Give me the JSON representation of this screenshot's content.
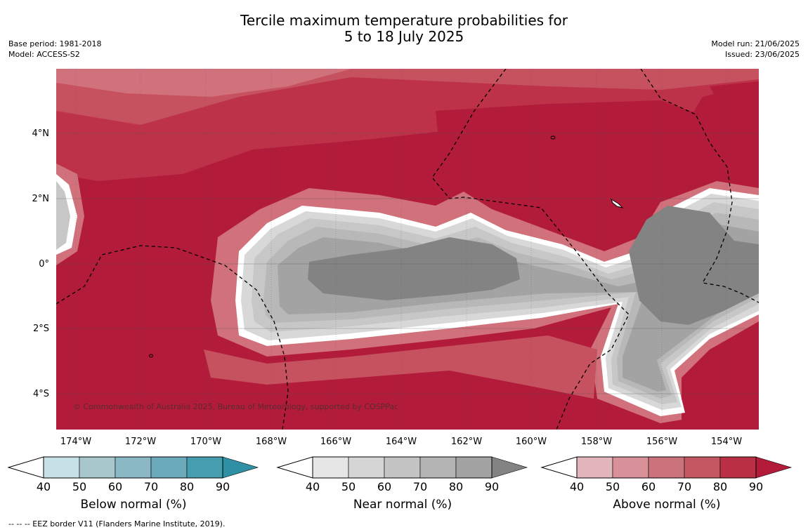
{
  "title": {
    "line1": "Tercile maximum temperature probabilities for",
    "line2": "5 to 18 July 2025"
  },
  "meta_left": {
    "base_period": "Base period: 1981-2018",
    "model": "Model: ACCESS-S2"
  },
  "meta_right": {
    "model_run": "Model run: 21/06/2025",
    "issued": "Issued: 23/06/2025"
  },
  "map": {
    "lat_labels": [
      "4°N",
      "2°N",
      "0°",
      "2°S",
      "4°S"
    ],
    "lon_labels": [
      "174°W",
      "172°W",
      "170°W",
      "168°W",
      "166°W",
      "164°W",
      "162°W",
      "160°W",
      "158°W",
      "156°W",
      "154°W"
    ],
    "copyright": "© Commonwealth of Australia 2025, Bureau of Meteorology, supported by COSPPac",
    "colors": {
      "above_max": "#b21c3a",
      "above_80": "#bd3248",
      "above_70": "#c7525f",
      "above_60": "#d1717b",
      "above_50": "#d99199",
      "near_max": "#838383",
      "near_80": "#a3a3a3",
      "near_70": "#b8b8b8",
      "near_60": "#c7c7c7",
      "near_50": "#d8d8d8"
    }
  },
  "colorbars": [
    {
      "label": "Below normal (%)",
      "ticks": [
        "40",
        "50",
        "60",
        "70",
        "80",
        "90"
      ],
      "colors": [
        "#c8e1e7",
        "#a8c7cd",
        "#8ab8c5",
        "#6baabb",
        "#479db0",
        "#2e8fa5"
      ]
    },
    {
      "label": "Near normal (%)",
      "ticks": [
        "40",
        "50",
        "60",
        "70",
        "80",
        "90"
      ],
      "colors": [
        "#e6e6e6",
        "#d5d5d5",
        "#c4c4c4",
        "#b4b4b4",
        "#a3a3a3",
        "#838383"
      ]
    },
    {
      "label": "Above normal (%)",
      "ticks": [
        "40",
        "50",
        "60",
        "70",
        "80",
        "90"
      ],
      "colors": [
        "#e2b6bc",
        "#d99199",
        "#cb737c",
        "#c45762",
        "#bb2f45",
        "#b21c3a"
      ]
    }
  ],
  "footnote": "--  --  -- EEZ border V11 (Flanders Marine Institute, 2019)."
}
